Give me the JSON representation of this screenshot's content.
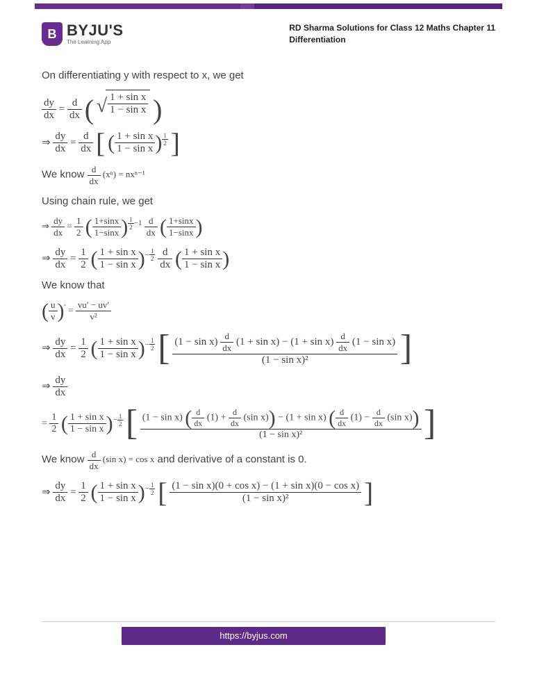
{
  "brand": {
    "letter": "B",
    "name": "BYJU'S",
    "tagline": "The Learning App"
  },
  "chapter": {
    "line1": "RD Sharma Solutions for Class 12 Maths Chapter 11",
    "line2": "Differentiation"
  },
  "text": {
    "intro": "On differentiating y with respect to x, we get",
    "know1a": "We know ",
    "know1b": "",
    "chain": "Using chain rule, we get",
    "know2": "We know that",
    "know3a": "We know ",
    "know3b": " and derivative of a constant is 0."
  },
  "sym": {
    "dydx_n": "dy",
    "dydx_d": "dx",
    "ddx_n": "d",
    "ddx_d": "dx",
    "ratio_n": "1 + sin x",
    "ratio_d": "1 − sin x",
    "power_half": "1",
    "power_half_d": "2",
    "xn": "(xⁿ) = nxⁿ⁻¹",
    "uv_n": "u",
    "uv_d": "v",
    "prime": "′",
    "uv_res_n": "vu′ − uv′",
    "uv_res_d": "v²",
    "sinx": "(sin x) = cos x",
    "long1_n": "(1 − sin x)",
    "long1_m": "(1 + sin x) − (1 + sin x)",
    "long1_e": "(1 − sin x)",
    "long1_d": "(1 − sin x)²",
    "long2_a": "(1 − sin x)",
    "long2_b": "(1) +",
    "long2_c": "(sin x)",
    "long2_d": "− (1 + sin x)",
    "long2_e": "(1) −",
    "long2_f": "(sin x)",
    "long2_den": "(1 − sin x)²",
    "long3_n": "(1 − sin x)(0 + cos x) − (1 + sin x)(0 − cos x)",
    "long3_d": "(1 − sin x)²"
  },
  "footer": "https://byjus.com",
  "colors": {
    "brand": "#6a2c91",
    "text": "#444"
  }
}
